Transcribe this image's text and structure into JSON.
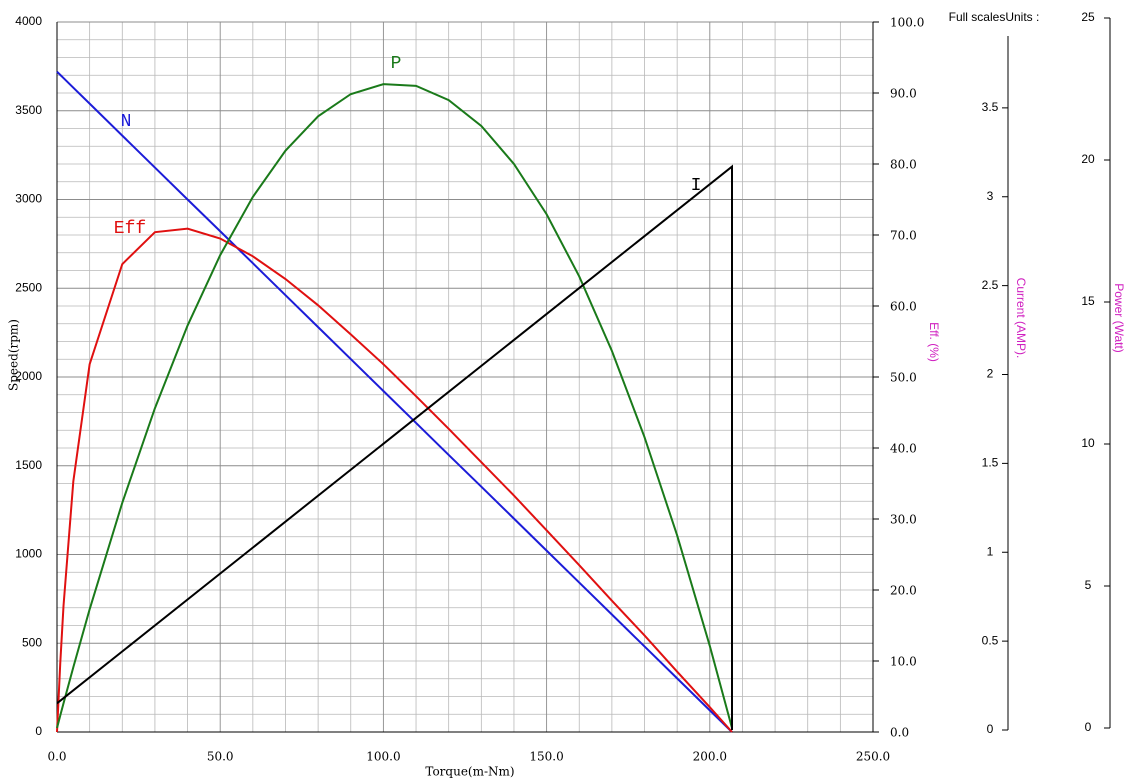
{
  "chart_data": {
    "type": "line",
    "xlabel": "Torque(m-Nm)",
    "ylabel": "Speed(rpm)",
    "y2label": "Eff. (%)",
    "y3label": "Current (AMP).",
    "y4label": "Power (Watt)",
    "axes_note": "Full scalesUnits :",
    "xlim": [
      0,
      250
    ],
    "xticks": [
      {
        "value": 0,
        "label": "0.0"
      },
      {
        "value": 50,
        "label": "50.0"
      },
      {
        "value": 100,
        "label": "100.0"
      },
      {
        "value": 150,
        "label": "150.0"
      },
      {
        "value": 200,
        "label": "200.0"
      },
      {
        "value": 250,
        "label": "250.0"
      }
    ],
    "ylim": [
      0,
      4000
    ],
    "yticks": [
      0,
      500,
      1000,
      1500,
      2000,
      2500,
      3000,
      3500,
      4000
    ],
    "y2lim": [
      0,
      100
    ],
    "y2ticks": [
      {
        "value": 0,
        "label": "0.0"
      },
      {
        "value": 10,
        "label": "10.0"
      },
      {
        "value": 20,
        "label": "20.0"
      },
      {
        "value": 30,
        "label": "30.0"
      },
      {
        "value": 40,
        "label": "40.0"
      },
      {
        "value": 50,
        "label": "50.0"
      },
      {
        "value": 60,
        "label": "60.0"
      },
      {
        "value": 70,
        "label": "70.0"
      },
      {
        "value": 80,
        "label": "80.0"
      },
      {
        "value": 90,
        "label": "90.0"
      },
      {
        "value": 100,
        "label": "100.0"
      }
    ],
    "y3lim": [
      0,
      4
    ],
    "y3ticks": [
      0,
      0.5,
      1,
      1.5,
      2,
      2.5,
      3,
      3.5
    ],
    "y4lim": [
      0,
      25
    ],
    "y4ticks": [
      0,
      5,
      10,
      15,
      20,
      25
    ],
    "grid": true,
    "x": [
      0,
      1,
      2,
      5,
      10,
      20,
      30,
      40,
      50,
      60,
      70,
      80,
      90,
      100,
      110,
      120,
      130,
      140,
      150,
      160,
      170,
      180,
      190,
      200,
      206.8
    ],
    "series": [
      {
        "name": "N",
        "color": "#1c1cd8",
        "axis": "y",
        "values": [
          3720,
          3702,
          3684,
          3630,
          3540,
          3360,
          3180,
          3000,
          2821,
          2641,
          2461,
          2281,
          2101,
          1921,
          1741,
          1561,
          1382,
          1202,
          1022,
          842,
          662,
          482,
          302,
          122,
          0
        ]
      },
      {
        "name": "Eff",
        "color": "#e01010",
        "axis": "y2",
        "values": [
          0,
          9.7,
          17.8,
          35.3,
          51.8,
          65.9,
          70.4,
          70.9,
          69.5,
          67.0,
          63.8,
          60.1,
          56.0,
          51.8,
          47.3,
          42.7,
          38.0,
          33.3,
          28.4,
          23.5,
          18.5,
          13.6,
          8.5,
          3.5,
          0
        ]
      },
      {
        "name": "P",
        "color": "#1a7a1a",
        "axis": "y4",
        "values": [
          0,
          0.44,
          0.87,
          2.14,
          4.18,
          7.93,
          11.26,
          14.17,
          16.65,
          18.7,
          20.33,
          21.54,
          22.32,
          22.67,
          22.61,
          22.11,
          21.2,
          19.86,
          18.09,
          15.9,
          13.28,
          10.24,
          6.78,
          2.89,
          0
        ]
      },
      {
        "name": "I",
        "color": "#000000",
        "axis": "y3",
        "x": [
          0,
          206.8,
          206.8
        ],
        "values": [
          0.15,
          3.17,
          0
        ]
      }
    ]
  }
}
